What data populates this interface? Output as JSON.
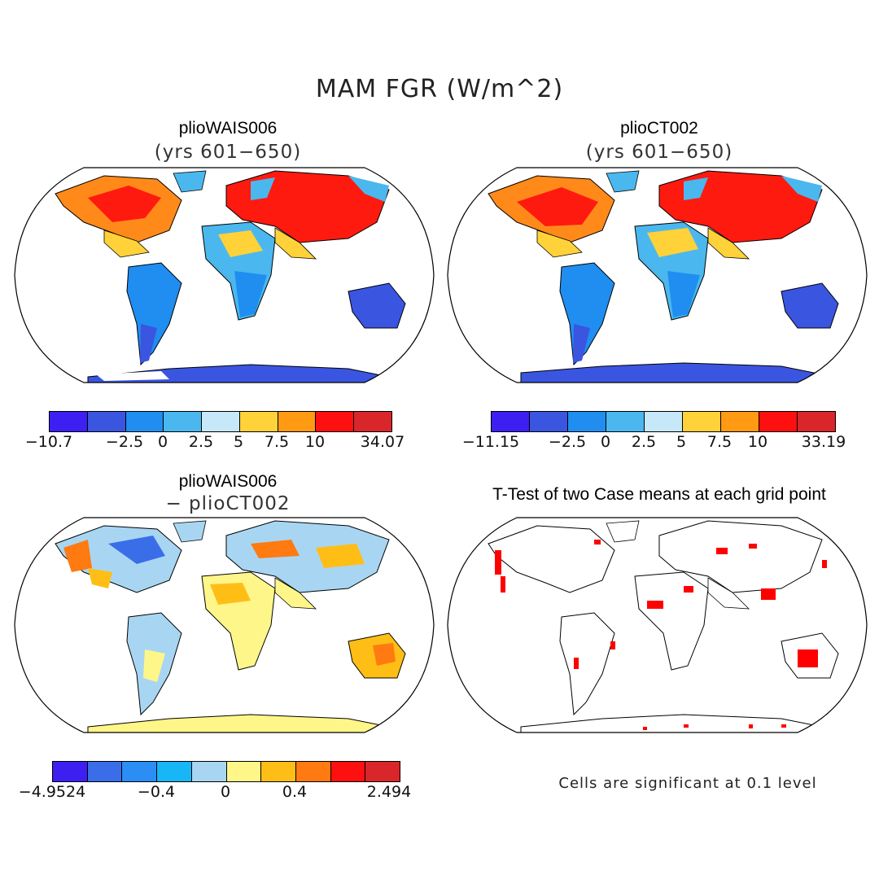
{
  "figure": {
    "title": "MAM FGR (W/m^2)"
  },
  "panels": [
    {
      "id": "tl",
      "title": "plioWAIS006",
      "subtitle": "(yrs 601−650)",
      "colorbar": {
        "colors": [
          "#3d1ff2",
          "#3a55e0",
          "#1f8ef0",
          "#4ab8ee",
          "#c6e8f8",
          "#ffd23a",
          "#ff9a12",
          "#ff1010",
          "#d8262b"
        ],
        "ticks": [
          "−10.7",
          "−2.5",
          "0",
          "2.5",
          "5",
          "7.5",
          "10",
          "34.07"
        ]
      }
    },
    {
      "id": "tr",
      "title": "plioCT002",
      "subtitle": "(yrs 601−650)",
      "colorbar": {
        "colors": [
          "#3d1ff2",
          "#3a55e0",
          "#1f8ef0",
          "#4ab8ee",
          "#c6e8f8",
          "#ffd23a",
          "#ff9a12",
          "#ff1010",
          "#d8262b"
        ],
        "ticks": [
          "−11.15",
          "−2.5",
          "0",
          "2.5",
          "5",
          "7.5",
          "10",
          "33.19"
        ]
      }
    },
    {
      "id": "bl",
      "title": "plioWAIS006",
      "subtitle": "− plioCT002",
      "colorbar": {
        "colors": [
          "#3d1ff2",
          "#3a6ee8",
          "#2a8ef5",
          "#16b6f7",
          "#a8d6f2",
          "#fff68a",
          "#ffbe16",
          "#ff7a10",
          "#ff1010",
          "#d8262b"
        ],
        "ticks": [
          "−4.9524",
          "−0.4",
          "0",
          "0.4",
          "2.494"
        ]
      }
    },
    {
      "id": "br",
      "title": "T-Test of two Case means at each grid point",
      "note": "Cells are significant at 0.1 level",
      "significance_color": "#ff0000"
    }
  ]
}
